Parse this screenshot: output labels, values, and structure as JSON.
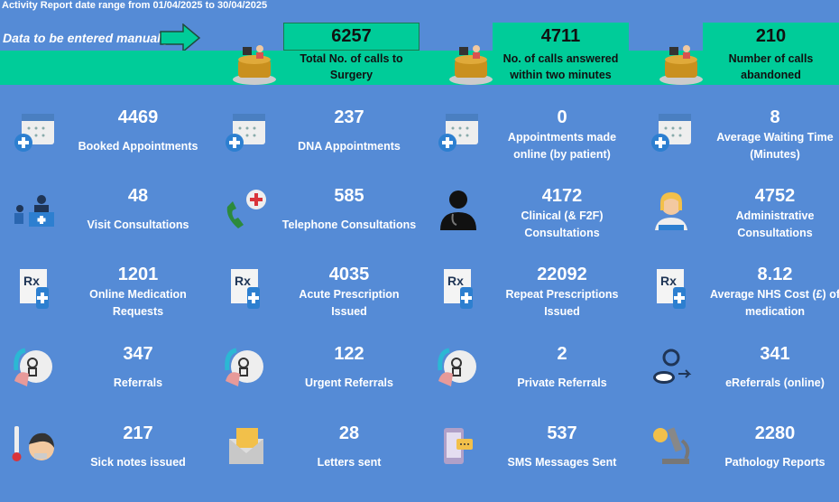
{
  "header": {
    "title": "Activity Report date range from 01/04/2025 to 30/04/2025",
    "manual_note": "Data to be entered manually"
  },
  "colors": {
    "background": "#558bd6",
    "accent_green": "#00cc99"
  },
  "kpis": [
    {
      "value": "6257",
      "label": "Total No. of calls to Surgery",
      "icon": "receptionist-desk-icon"
    },
    {
      "value": "4711",
      "label": "No. of calls answered within two minutes",
      "icon": "receptionist-desk-icon"
    },
    {
      "value": "210",
      "label": "Number of calls abandoned",
      "icon": "receptionist-desk-icon"
    }
  ],
  "tiles": [
    {
      "value": "4469",
      "label": "Booked Appointments",
      "icon": "calendar-plus-icon"
    },
    {
      "value": "237",
      "label": "DNA Appointments",
      "icon": "calendar-plus-icon"
    },
    {
      "value": "0",
      "label": "Appointments made online (by patient)",
      "icon": "calendar-plus-icon"
    },
    {
      "value": "8",
      "label": "Average Waiting Time (Minutes)",
      "icon": "calendar-plus-icon"
    },
    {
      "value": "48",
      "label": "Visit Consultations",
      "icon": "visit-consultation-icon"
    },
    {
      "value": "585",
      "label": "Telephone Consultations",
      "icon": "telephone-medical-icon"
    },
    {
      "value": "4172",
      "label": "Clinical (& F2F) Consultations",
      "icon": "doctor-icon"
    },
    {
      "value": "4752",
      "label": "Administrative Consultations",
      "icon": "receptionist-headset-icon"
    },
    {
      "value": "1201",
      "label": "Online Medication Requests",
      "icon": "prescription-icon"
    },
    {
      "value": "4035",
      "label": "Acute Prescription Issued",
      "icon": "prescription-icon"
    },
    {
      "value": "22092",
      "label": "Repeat Prescriptions Issued",
      "icon": "prescription-icon"
    },
    {
      "value": "8.12",
      "label": "Average NHS Cost (£) of medication",
      "icon": "prescription-icon"
    },
    {
      "value": "347",
      "label": "Referrals",
      "icon": "referral-stamp-icon"
    },
    {
      "value": "122",
      "label": "Urgent Referrals",
      "icon": "referral-stamp-icon"
    },
    {
      "value": "2",
      "label": "Private Referrals",
      "icon": "referral-stamp-icon"
    },
    {
      "value": "341",
      "label": "eReferrals (online)",
      "icon": "ereferral-icon"
    },
    {
      "value": "217",
      "label": "Sick notes issued",
      "icon": "sick-person-thermometer-icon"
    },
    {
      "value": "28",
      "label": "Letters sent",
      "icon": "envelope-icon"
    },
    {
      "value": "537",
      "label": "SMS Messages Sent",
      "icon": "sms-phone-icon"
    },
    {
      "value": "2280",
      "label": "Pathology Reports",
      "icon": "microscope-icon"
    }
  ]
}
